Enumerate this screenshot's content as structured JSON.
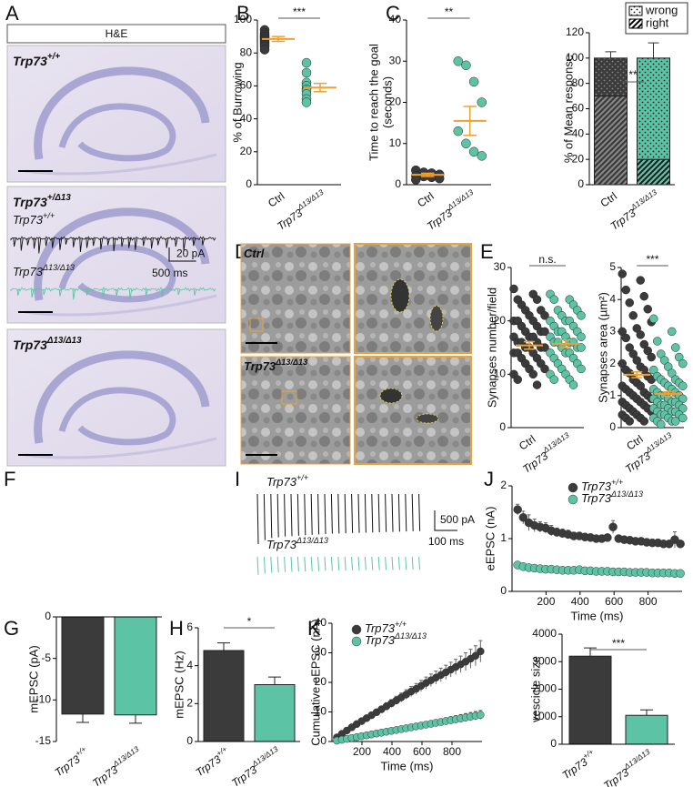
{
  "panel_letters": [
    "A",
    "B",
    "C",
    "D",
    "E",
    "F",
    "I",
    "J",
    "G",
    "H",
    "K"
  ],
  "histology": {
    "stain": "H&E",
    "labels": [
      {
        "text": "Trp73",
        "sup": "+/+"
      },
      {
        "text": "Trp73",
        "sup": "+/Δ13"
      },
      {
        "text": "Trp73",
        "sup": "Δ13/Δ13"
      }
    ]
  },
  "em": {
    "labels": [
      {
        "text": "Ctrl"
      },
      {
        "text": "Trp73",
        "sup": "Δ13/Δ13"
      }
    ]
  },
  "chart_data": [
    {
      "type": "dot",
      "ylabel": [
        "% of Burrowing"
      ],
      "ylim": [
        0,
        100
      ],
      "yticks": [
        0,
        20,
        40,
        60,
        80,
        100
      ],
      "categories": [
        {
          "text": "Ctrl"
        },
        {
          "text": "Trp73",
          "sup": "Δ13/Δ13"
        }
      ],
      "mean_color": "#f0a030",
      "significance": "***",
      "groups": [
        {
          "color": "#3b3b3b",
          "values": [
            94,
            92,
            91,
            90,
            90,
            89,
            88,
            87,
            86,
            85,
            84,
            82
          ],
          "mean": 88.5,
          "sem": 1.5
        },
        {
          "color": "#5cc4a5",
          "values": [
            74,
            68,
            62,
            60,
            58,
            57,
            55,
            52,
            50
          ],
          "mean": 59,
          "sem": 2.5
        }
      ]
    },
    {
      "type": "dot",
      "ylabel": [
        "Time to reach the goal",
        "(seconds)"
      ],
      "ylim": [
        0,
        40
      ],
      "yticks": [
        0,
        10,
        20,
        30,
        40
      ],
      "categories": [
        {
          "text": "Ctrl"
        },
        {
          "text": "Trp73",
          "sup": "Δ13/Δ13"
        }
      ],
      "mean_color": "#f0a030",
      "significance": "**",
      "groups": [
        {
          "color": "#3b3b3b",
          "values": [
            3.5,
            3,
            2.8,
            2.5,
            2.2,
            2,
            1.8,
            1.5,
            1.2
          ],
          "mean": 2.4,
          "sem": 0.4
        },
        {
          "color": "#5cc4a5",
          "values": [
            30,
            29,
            25,
            20,
            13,
            10,
            8,
            7
          ],
          "mean": 15.5,
          "sem": 3.5
        }
      ]
    },
    {
      "type": "stacked",
      "ylabel": [
        "% of Mean response"
      ],
      "ylim": [
        0,
        120
      ],
      "yticks": [
        0,
        20,
        40,
        60,
        80,
        100,
        120
      ],
      "categories": [
        {
          "text": "Ctrl"
        },
        {
          "text": "Trp73",
          "sup": "Δ13/Δ13"
        }
      ],
      "colors": [
        "#3b3b3b",
        "#5cc4a5"
      ],
      "ink": [
        "#8a8a8a",
        "#1a1a1a"
      ],
      "significance": "**",
      "series": [
        {
          "name": "right",
          "pattern": "hatch",
          "values": [
            70,
            20
          ]
        },
        {
          "name": "wrong",
          "pattern": "dots",
          "values": [
            30,
            80
          ],
          "errors": [
            5,
            12
          ]
        }
      ]
    },
    {
      "type": "dot",
      "ylabel": [
        "Synapses number/field"
      ],
      "ylim": [
        0,
        30
      ],
      "yticks": [
        0,
        10,
        20,
        30
      ],
      "categories": [
        {
          "text": "Ctrl"
        },
        {
          "text": "Trp73",
          "sup": "Δ13/Δ13"
        }
      ],
      "mean_color": "#f0a030",
      "significance": "n.s.",
      "groups": [
        {
          "color": "#3b3b3b",
          "values": [
            26,
            25,
            24,
            24,
            23,
            22,
            22,
            21,
            21,
            20,
            20,
            20,
            19,
            19,
            18,
            18,
            18,
            17,
            17,
            17,
            16,
            16,
            16,
            15,
            15,
            15,
            15,
            14,
            14,
            14,
            13,
            13,
            12,
            12,
            11,
            11,
            10,
            10,
            9,
            8
          ],
          "mean": 15.4,
          "sem": 0.7
        },
        {
          "color": "#5cc4a5",
          "values": [
            25,
            24,
            24,
            23,
            22,
            22,
            21,
            21,
            20,
            20,
            20,
            19,
            19,
            18,
            18,
            18,
            17,
            17,
            17,
            16,
            16,
            16,
            16,
            15,
            15,
            15,
            14,
            14,
            14,
            13,
            13,
            12,
            12,
            11,
            11,
            10,
            10,
            9,
            9,
            8
          ],
          "mean": 15.7,
          "sem": 0.7
        }
      ]
    },
    {
      "type": "dot",
      "ylabel": [
        "Synapses area (µm²)"
      ],
      "ylim": [
        0,
        5
      ],
      "yticks": [
        0,
        1,
        2,
        3,
        4,
        5
      ],
      "categories": [
        {
          "text": "Ctrl"
        },
        {
          "text": "Trp73",
          "sup": "Δ13/Δ13"
        }
      ],
      "mean_color": "#f0a030",
      "significance": "***",
      "groups": [
        {
          "color": "#3b3b3b",
          "values": [
            4.8,
            4.6,
            4.3,
            4.1,
            3.9,
            3.7,
            3.5,
            3.3,
            3.1,
            3,
            2.9,
            2.8,
            2.6,
            2.5,
            2.4,
            2.3,
            2.2,
            2.1,
            2,
            1.9,
            1.8,
            1.8,
            1.7,
            1.6,
            1.5,
            1.5,
            1.4,
            1.3,
            1.3,
            1.2,
            1.1,
            1.1,
            1,
            1,
            0.9,
            0.9,
            0.8,
            0.8,
            0.7,
            0.7,
            0.6,
            0.6,
            0.5,
            0.5,
            0.4,
            0.4,
            0.3,
            0.3,
            0.2,
            0.2
          ],
          "mean": 1.65,
          "sem": 0.09
        },
        {
          "color": "#5cc4a5",
          "values": [
            3.4,
            3,
            2.7,
            2.5,
            2.3,
            2.2,
            2.1,
            2,
            1.9,
            1.8,
            1.7,
            1.6,
            1.5,
            1.5,
            1.4,
            1.4,
            1.3,
            1.3,
            1.2,
            1.2,
            1.1,
            1.1,
            1,
            1,
            1,
            0.9,
            0.9,
            0.9,
            0.8,
            0.8,
            0.8,
            0.7,
            0.7,
            0.7,
            0.6,
            0.6,
            0.6,
            0.5,
            0.5,
            0.5,
            0.4,
            0.4,
            0.4,
            0.3,
            0.3,
            0.3,
            0.2,
            0.2,
            0.2,
            0.1
          ],
          "mean": 1.05,
          "sem": 0.07
        }
      ]
    },
    {
      "type": "trace",
      "xlim": [
        0,
        3800
      ],
      "scale_y": {
        "value": 20,
        "label": "20 pA"
      },
      "scale_x": {
        "value": 500,
        "label": "500 ms"
      },
      "series": [
        {
          "name": "Trp73",
          "name_sup": "+/+",
          "color": "#111111",
          "times": [
            50,
            180,
            300,
            420,
            510,
            640,
            760,
            900,
            1010,
            1150,
            1280,
            1400,
            1520,
            1660,
            1790,
            1900,
            2050,
            2180,
            2300,
            2450,
            2600,
            2720,
            2880,
            3050,
            3200,
            3380,
            3550
          ],
          "amplitudes": [
            12,
            18,
            10,
            15,
            22,
            11,
            14,
            17,
            9,
            13,
            20,
            14,
            11,
            16,
            10,
            19,
            12,
            14,
            17,
            11,
            15,
            10,
            14,
            12,
            18,
            11,
            10
          ]
        },
        {
          "name": "Trp73",
          "name_sup": "Δ13/Δ13",
          "color": "#5cc4a5",
          "times": [
            120,
            380,
            600,
            900,
            1150,
            1400,
            1700,
            1950,
            2200,
            2500,
            2800,
            3100,
            3400
          ],
          "amplitudes": [
            9,
            12,
            8,
            10,
            15,
            9,
            12,
            10,
            14,
            9,
            11,
            8,
            9
          ]
        }
      ]
    },
    {
      "type": "evoked",
      "scale_y": {
        "value": 500,
        "label": "500 pA"
      },
      "scale_x": {
        "value": 100,
        "label": "100 ms"
      },
      "series": [
        {
          "name": "Trp73",
          "name_sup": "+/+",
          "color": "#111111",
          "amplitudes": [
            1250,
            1150,
            1100,
            1080,
            1060,
            1050,
            1040,
            1030,
            1020,
            1010,
            1000,
            990,
            985,
            980,
            975,
            970,
            965,
            960,
            955,
            950,
            945,
            940,
            935,
            930,
            925
          ]
        },
        {
          "name": "Trp73",
          "name_sup": "Δ13/Δ13",
          "color": "#5cc4a5",
          "amplitudes": [
            450,
            420,
            400,
            390,
            380,
            375,
            370,
            365,
            360,
            355,
            350,
            350,
            345,
            345,
            340,
            340,
            335,
            335,
            330,
            330,
            330,
            325,
            325,
            320,
            320
          ]
        }
      ]
    },
    {
      "type": "line",
      "ylabel": [
        "eEPSC (nA)"
      ],
      "xlabel": "Time (ms)",
      "ylim": [
        0,
        2
      ],
      "yticks": [
        0,
        1,
        2
      ],
      "xlim": [
        0,
        1000
      ],
      "xticks": [
        200,
        400,
        600,
        800
      ],
      "x": [
        33,
        66,
        99,
        132,
        165,
        198,
        231,
        264,
        297,
        330,
        363,
        396,
        429,
        462,
        495,
        528,
        561,
        594,
        627,
        660,
        693,
        726,
        759,
        792,
        825,
        858,
        891,
        924,
        957,
        990
      ],
      "series": [
        {
          "name": "Trp73",
          "name_sup": "+/+",
          "color": "#3b3b3b",
          "values": [
            1.55,
            1.4,
            1.3,
            1.25,
            1.22,
            1.2,
            1.15,
            1.12,
            1.1,
            1.08,
            1.05,
            1.05,
            1.03,
            1.02,
            1,
            1,
            1.02,
            1.22,
            1,
            0.98,
            0.97,
            0.95,
            0.95,
            0.93,
            0.92,
            0.92,
            0.9,
            0.9,
            0.98,
            0.9
          ],
          "errors": [
            0.1,
            0.12,
            0.15,
            0.12,
            0.1,
            0.1,
            0.1,
            0.08,
            0.08,
            0.08,
            0.07,
            0.07,
            0.07,
            0.07,
            0.06,
            0.06,
            0.06,
            0.12,
            0.06,
            0.06,
            0.06,
            0.06,
            0.05,
            0.05,
            0.05,
            0.05,
            0.05,
            0.05,
            0.15,
            0.05
          ]
        },
        {
          "name": "Trp73",
          "name_sup": "Δ13/Δ13",
          "color": "#5cc4a5",
          "values": [
            0.5,
            0.47,
            0.45,
            0.44,
            0.43,
            0.42,
            0.42,
            0.41,
            0.4,
            0.4,
            0.4,
            0.41,
            0.39,
            0.39,
            0.38,
            0.38,
            0.38,
            0.37,
            0.37,
            0.37,
            0.36,
            0.36,
            0.36,
            0.36,
            0.35,
            0.35,
            0.35,
            0.35,
            0.34,
            0.34
          ],
          "errors": [
            0.04,
            0.04,
            0.04,
            0.04,
            0.04,
            0.04,
            0.04,
            0.04,
            0.04,
            0.04,
            0.04,
            0.04,
            0.04,
            0.04,
            0.04,
            0.04,
            0.04,
            0.04,
            0.04,
            0.04,
            0.04,
            0.04,
            0.04,
            0.04,
            0.04,
            0.04,
            0.04,
            0.04,
            0.04,
            0.04
          ]
        }
      ]
    },
    {
      "type": "bar",
      "ylabel": [
        "mEPSC (pA)"
      ],
      "ylim": [
        -15,
        0
      ],
      "yticks": [
        0,
        -5,
        -10,
        -15
      ],
      "categories": [
        {
          "text": "Trp73",
          "sup": "+/+"
        },
        {
          "text": "Trp73",
          "sup": "Δ13/Δ13"
        }
      ],
      "colors": [
        "#3b3b3b",
        "#5cc4a5"
      ],
      "values": [
        -11.7,
        -11.8
      ],
      "errors": [
        1,
        1
      ]
    },
    {
      "type": "bar",
      "ylabel": [
        "mEPSC (Hz)"
      ],
      "ylim": [
        0,
        6
      ],
      "yticks": [
        0,
        2,
        4,
        6
      ],
      "significance": "*",
      "categories": [
        {
          "text": "Trp73",
          "sup": "+/+"
        },
        {
          "text": "Trp73",
          "sup": "Δ13/Δ13"
        }
      ],
      "colors": [
        "#3b3b3b",
        "#5cc4a5"
      ],
      "values": [
        4.8,
        3
      ],
      "errors": [
        0.4,
        0.4
      ]
    },
    {
      "type": "line",
      "ylabel": [
        "Cumulative eEPSC (nA)"
      ],
      "xlabel": "Time (ms)",
      "ylim": [
        0,
        40
      ],
      "yticks": [
        0,
        10,
        20,
        30,
        40
      ],
      "xlim": [
        0,
        1000
      ],
      "xticks": [
        200,
        400,
        600,
        800
      ],
      "x": [
        33,
        66,
        99,
        132,
        165,
        198,
        231,
        264,
        297,
        330,
        363,
        396,
        429,
        462,
        495,
        528,
        561,
        594,
        627,
        660,
        693,
        726,
        759,
        792,
        825,
        858,
        891,
        924,
        957,
        990
      ],
      "series": [
        {
          "name": "Trp73",
          "name_sup": "+/+",
          "color": "#3b3b3b",
          "values": [
            1.4,
            2.6,
            3.7,
            4.8,
            5.9,
            6.9,
            7.9,
            8.9,
            9.9,
            10.9,
            11.9,
            12.9,
            13.9,
            14.9,
            15.9,
            16.9,
            17.8,
            18.8,
            19.8,
            20.7,
            21.6,
            22.5,
            23.4,
            24.3,
            25.2,
            26.1,
            27,
            28,
            29,
            30.5
          ],
          "errors": [
            0.2,
            0.3,
            0.4,
            0.5,
            0.6,
            0.7,
            0.8,
            0.9,
            1,
            1.1,
            1.2,
            1.3,
            1.4,
            1.5,
            1.6,
            1.7,
            1.8,
            1.9,
            2,
            2.1,
            2.2,
            2.3,
            2.4,
            2.5,
            2.6,
            2.8,
            3,
            3.2,
            3.4,
            3.6
          ]
        },
        {
          "name": "Trp73",
          "name_sup": "Δ13/Δ13",
          "color": "#5cc4a5",
          "values": [
            0.3,
            0.6,
            0.9,
            1.2,
            1.5,
            1.8,
            2.1,
            2.4,
            2.7,
            3,
            3.3,
            3.6,
            3.9,
            4.2,
            4.5,
            4.8,
            5.1,
            5.4,
            5.7,
            6,
            6.3,
            6.6,
            6.9,
            7.2,
            7.5,
            7.8,
            8.1,
            8.4,
            8.7,
            9
          ],
          "errors": [
            0.1,
            0.1,
            0.15,
            0.2,
            0.25,
            0.3,
            0.35,
            0.4,
            0.45,
            0.5,
            0.55,
            0.6,
            0.65,
            0.7,
            0.75,
            0.8,
            0.85,
            0.9,
            0.95,
            1,
            1.05,
            1.1,
            1.15,
            1.2,
            1.25,
            1.3,
            1.35,
            1.4,
            1.45,
            1.5
          ]
        }
      ]
    },
    {
      "type": "bar",
      "ylabel": [
        "vescicle size"
      ],
      "ylim": [
        0,
        4000
      ],
      "yticks": [
        0,
        1000,
        2000,
        3000,
        4000
      ],
      "significance": "***",
      "categories": [
        {
          "text": "Trp73",
          "sup": "+/+"
        },
        {
          "text": "Trp73",
          "sup": "Δ13/Δ13"
        }
      ],
      "colors": [
        "#3b3b3b",
        "#5cc4a5"
      ],
      "values": [
        3200,
        1050
      ],
      "errors": [
        300,
        200
      ]
    }
  ]
}
